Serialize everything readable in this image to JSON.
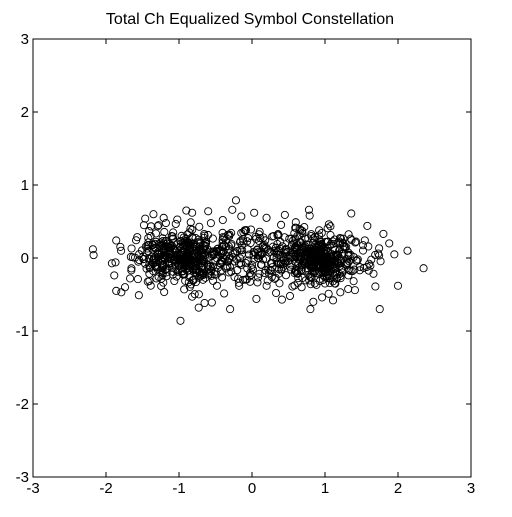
{
  "chart_data": {
    "type": "scatter",
    "title": "Total Ch Equalized Symbol Constellation",
    "xlabel": "",
    "ylabel": "",
    "xlim": [
      -3,
      3
    ],
    "ylim": [
      -3,
      3
    ],
    "xticks": [
      -3,
      -2,
      -1,
      0,
      1,
      2,
      3
    ],
    "yticks": [
      -3,
      -2,
      -1,
      0,
      1,
      2,
      3
    ],
    "xtick_labels": [
      "-3",
      "-2",
      "-1",
      "0",
      "1",
      "2",
      "3"
    ],
    "ytick_labels": [
      "-3",
      "-2",
      "-1",
      "0",
      "1",
      "2",
      "3"
    ],
    "grid": false,
    "marker": "open-circle",
    "marker_color": "#000000",
    "series": [
      {
        "points": [
          [
            -2.18,
            0.12
          ],
          [
            -2.17,
            0.04
          ],
          [
            -1.86,
            0.24
          ],
          [
            -1.87,
            -0.06
          ],
          [
            -1.86,
            -0.45
          ],
          [
            -1.79,
            -0.47
          ],
          [
            -1.74,
            -0.4
          ],
          [
            -1.65,
            0.13
          ],
          [
            -1.67,
            -0.28
          ],
          [
            -1.55,
            -0.51
          ],
          [
            -1.48,
            0.45
          ],
          [
            -1.41,
            0.37
          ],
          [
            -1.35,
            0.6
          ],
          [
            -1.28,
            0.45
          ],
          [
            -1.21,
            0.55
          ],
          [
            -1.1,
            0.3
          ],
          [
            -1.08,
            0.35
          ],
          [
            -0.98,
            -0.86
          ],
          [
            -0.9,
            0.65
          ],
          [
            -0.82,
            0.62
          ],
          [
            -0.82,
            -0.53
          ],
          [
            -0.73,
            -0.68
          ],
          [
            -0.6,
            0.64
          ],
          [
            -0.55,
            -0.61
          ],
          [
            -0.48,
            -0.38
          ],
          [
            -0.4,
            0.52
          ],
          [
            -0.3,
            -0.7
          ],
          [
            -0.27,
            0.66
          ],
          [
            -0.22,
            0.79
          ],
          [
            -0.18,
            -0.34
          ],
          [
            -0.1,
            0.38
          ],
          [
            0.03,
            0.62
          ],
          [
            0.06,
            -0.56
          ],
          [
            0.2,
            -0.38
          ],
          [
            0.33,
            -0.48
          ],
          [
            0.41,
            -0.57
          ],
          [
            0.45,
            0.59
          ],
          [
            0.52,
            -0.52
          ],
          [
            0.6,
            0.49
          ],
          [
            0.68,
            -0.4
          ],
          [
            0.78,
            0.66
          ],
          [
            0.79,
            0.58
          ],
          [
            0.8,
            -0.7
          ],
          [
            0.84,
            -0.6
          ],
          [
            0.92,
            0.38
          ],
          [
            0.96,
            -0.54
          ],
          [
            1.05,
            -0.49
          ],
          [
            1.11,
            -0.58
          ],
          [
            1.21,
            -0.47
          ],
          [
            1.36,
            0.61
          ],
          [
            1.41,
            -0.44
          ],
          [
            1.58,
            0.44
          ],
          [
            1.69,
            -0.39
          ],
          [
            1.75,
            -0.7
          ],
          [
            1.8,
            0.33
          ],
          [
            1.88,
            0.2
          ],
          [
            1.95,
            0.05
          ],
          [
            2.0,
            -0.38
          ],
          [
            2.13,
            0.1
          ],
          [
            2.35,
            -0.14
          ]
        ],
        "clusters": [
          {
            "center": [
              -0.95,
              0.0
            ],
            "spread": [
              0.32,
              0.17
            ],
            "count": 420
          },
          {
            "center": [
              0.95,
              0.0
            ],
            "spread": [
              0.32,
              0.17
            ],
            "count": 420
          },
          {
            "center": [
              0.0,
              0.05
            ],
            "spread": [
              0.38,
              0.2
            ],
            "count": 160
          }
        ]
      }
    ]
  }
}
